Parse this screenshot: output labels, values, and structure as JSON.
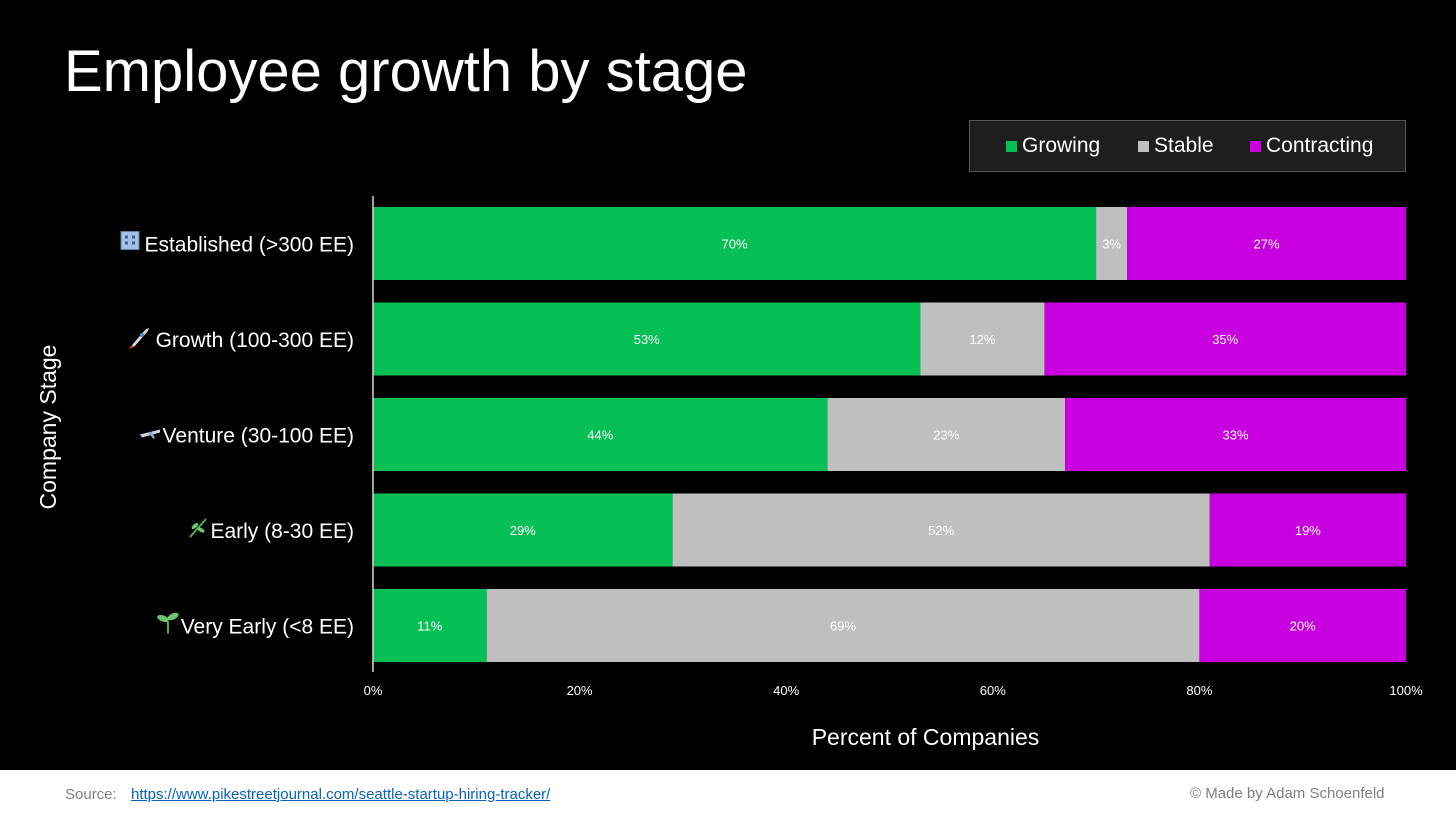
{
  "title": "Employee growth by stage",
  "legend": [
    {
      "label": "Growing",
      "color": "#06bf55"
    },
    {
      "label": "Stable",
      "color": "#bfbfbf"
    },
    {
      "label": "Contracting",
      "color": "#c800e0"
    }
  ],
  "footer": {
    "source_label": "Source:",
    "source_url": "https://www.pikestreetjournal.com/seattle-startup-hiring-tracker/",
    "credit": "© Made by Adam Schoenfeld"
  },
  "chart_data": {
    "type": "bar",
    "orientation": "horizontal",
    "stacked": true,
    "title": "Employee growth by stage",
    "xlabel": "Percent of Companies",
    "ylabel": "Company Stage",
    "xlim": [
      0,
      100
    ],
    "xticks": [
      "0%",
      "20%",
      "40%",
      "60%",
      "80%",
      "100%"
    ],
    "legend_position": "top-right",
    "grid": false,
    "categories": [
      {
        "label": "Established (>300 EE)",
        "icon": "office-building-icon"
      },
      {
        "label": "Growth (100-300 EE)",
        "icon": "rocket-icon"
      },
      {
        "label": "Venture (30-100 EE)",
        "icon": "airplane-icon"
      },
      {
        "label": "Early (8-30 EE)",
        "icon": "herb-icon"
      },
      {
        "label": "Very Early (<8 EE)",
        "icon": "seedling-icon"
      }
    ],
    "series": [
      {
        "name": "Growing",
        "color": "#06bf55",
        "values": [
          70,
          53,
          44,
          29,
          11
        ]
      },
      {
        "name": "Stable",
        "color": "#bfbfbf",
        "values": [
          3,
          12,
          23,
          52,
          69
        ]
      },
      {
        "name": "Contracting",
        "color": "#c800e0",
        "values": [
          27,
          35,
          33,
          19,
          20
        ]
      }
    ]
  }
}
